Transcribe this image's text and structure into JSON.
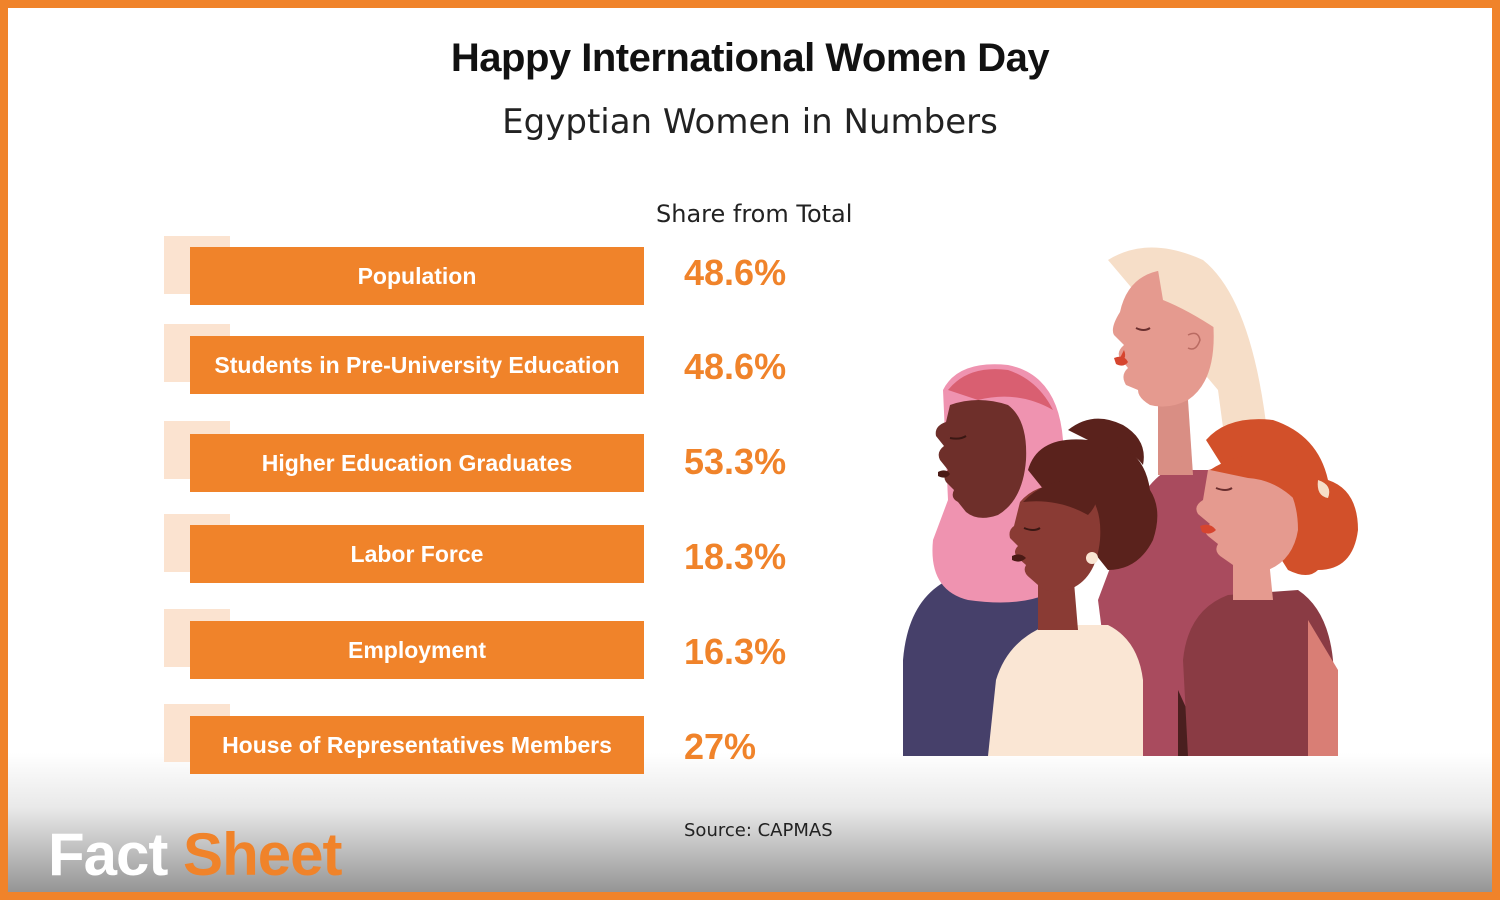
{
  "header": {
    "title": "Happy International Women Day",
    "subtitle": "Egyptian Women in Numbers"
  },
  "table": {
    "column_header": "Share from Total",
    "rows": [
      {
        "label": "Population",
        "value": "48.6%"
      },
      {
        "label": "Students in Pre-University Education",
        "value": "48.6%"
      },
      {
        "label": "Higher Education Graduates",
        "value": "53.3%"
      },
      {
        "label": "Labor Force",
        "value": "18.3%"
      },
      {
        "label": "Employment",
        "value": "16.3%"
      },
      {
        "label": "House of Representatives Members",
        "value": "27%"
      }
    ]
  },
  "footer": {
    "source": "Source: CAPMAS",
    "brand_part1": "Fact",
    "brand_part2": "Sheet"
  },
  "colors": {
    "accent": "#F0832A",
    "accent_light": "#FBE3D0"
  },
  "illustration": {
    "description_icon": "women-group-illustration"
  }
}
